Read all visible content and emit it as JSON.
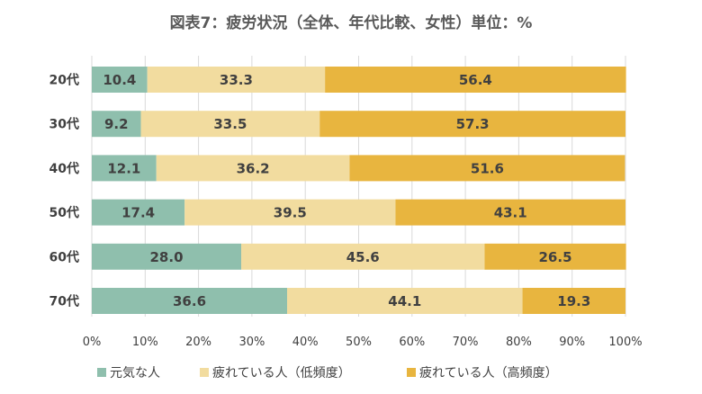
{
  "chart_data": {
    "type": "bar",
    "orientation": "horizontal",
    "stacked": true,
    "title": "図表7：疲労状況（全体、年代比較、女性）単位：%",
    "categories": [
      "20代",
      "30代",
      "40代",
      "50代",
      "60代",
      "70代"
    ],
    "series": [
      {
        "name": "元気な人",
        "color": "#8fbfad",
        "values": [
          10.4,
          9.2,
          12.1,
          17.4,
          28.0,
          36.6
        ]
      },
      {
        "name": "疲れている人（低頻度）",
        "color": "#f2dc9f",
        "values": [
          33.3,
          33.5,
          36.2,
          39.5,
          45.6,
          44.1
        ]
      },
      {
        "name": "疲れている人（高頻度）",
        "color": "#e8b53f",
        "values": [
          56.4,
          57.3,
          51.6,
          43.1,
          26.5,
          19.3
        ]
      }
    ],
    "xlim": [
      0,
      100
    ],
    "x_ticks": [
      "0%",
      "10%",
      "20%",
      "30%",
      "40%",
      "50%",
      "60%",
      "70%",
      "80%",
      "90%",
      "100%"
    ],
    "grid": true,
    "legend": "bottom"
  }
}
